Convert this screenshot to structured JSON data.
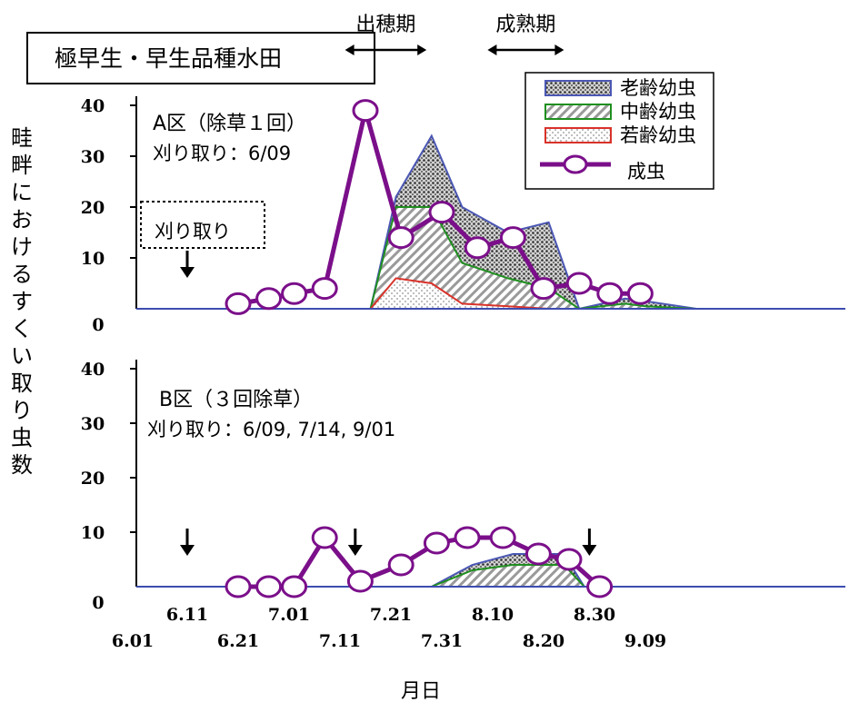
{
  "chart_data": {
    "type": "area",
    "title": "極早生・早生品種水田",
    "ylabel": "畦畔におけるすくい取り虫数",
    "xlabel": "月日",
    "ylim": [
      0,
      40
    ],
    "yticks": [
      "0",
      "10",
      "20",
      "30",
      "40"
    ],
    "stages": [
      {
        "label": "出穂期",
        "x": [
          41,
          57
        ]
      },
      {
        "label": "成熟期",
        "x": [
          69,
          84
        ]
      }
    ],
    "legend": [
      {
        "key": "old",
        "label": "老齢幼虫",
        "color": "#4b57b4",
        "fill": "dots"
      },
      {
        "key": "mid",
        "label": "中齢幼虫",
        "color": "#1f8f1f",
        "fill": "hatch"
      },
      {
        "key": "young",
        "label": "若齢幼虫",
        "color": "#d9322a",
        "fill": "dots-light"
      },
      {
        "key": "adult",
        "label": "成虫",
        "color": "#7b0f8a",
        "fill": "line-marker"
      }
    ],
    "xticks": [
      {
        "label": "6.01",
        "x": 0,
        "row": 2
      },
      {
        "label": "6.11",
        "x": 10,
        "row": 1
      },
      {
        "label": "6.21",
        "x": 20,
        "row": 2
      },
      {
        "label": "7.01",
        "x": 30,
        "row": 1
      },
      {
        "label": "7.11",
        "x": 40,
        "row": 2
      },
      {
        "label": "7.21",
        "x": 50,
        "row": 1
      },
      {
        "label": "7.31",
        "x": 60,
        "row": 2
      },
      {
        "label": "8.10",
        "x": 70,
        "row": 1
      },
      {
        "label": "8.20",
        "x": 80,
        "row": 2
      },
      {
        "label": "8.30",
        "x": 90,
        "row": 1
      },
      {
        "label": "9.09",
        "x": 100,
        "row": 2
      }
    ],
    "panels": [
      {
        "name": "A区",
        "label": "A区（除草１回）",
        "mow_label": "刈り取り：6/09",
        "mow_box": "刈り取り",
        "mow_x": [
          10
        ],
        "adult": {
          "x": [
            20,
            26,
            31,
            37,
            45,
            52,
            60,
            67,
            74,
            80,
            87,
            93,
            99
          ],
          "y": [
            1,
            2,
            3,
            4,
            39,
            14,
            19,
            12,
            14,
            4,
            5,
            3,
            3
          ]
        },
        "old": {
          "x": [
            46,
            51,
            58,
            64,
            73,
            81,
            87,
            96,
            100,
            110
          ],
          "y": [
            0,
            22,
            34,
            20,
            15,
            17,
            0,
            2,
            1.5,
            0
          ]
        },
        "mid": {
          "x": [
            46,
            51,
            58,
            64,
            73,
            81,
            87,
            96,
            100,
            110
          ],
          "y": [
            0,
            20,
            20,
            9,
            6,
            4,
            0,
            1,
            0.5,
            0
          ]
        },
        "young": {
          "x": [
            46,
            51,
            58,
            64,
            73,
            81,
            87,
            110
          ],
          "y": [
            0,
            6,
            5,
            1,
            0.5,
            0,
            0,
            0
          ]
        }
      },
      {
        "name": "B区",
        "label": "B区（３回除草）",
        "mow_label": "刈り取り：6/09, 7/14, 9/01",
        "mow_x": [
          10,
          43,
          89
        ],
        "adult": {
          "x": [
            20,
            26,
            31,
            37,
            44,
            52,
            59,
            65,
            72,
            79,
            85,
            91
          ],
          "y": [
            0,
            0,
            0,
            9,
            1,
            4,
            8,
            9,
            9,
            6,
            5,
            0
          ]
        },
        "old": {
          "x": [
            58,
            66,
            74,
            84,
            88,
            110
          ],
          "y": [
            0,
            4,
            6,
            6,
            0,
            0
          ]
        },
        "mid": {
          "x": [
            58,
            66,
            74,
            84,
            88,
            110
          ],
          "y": [
            0,
            3,
            4,
            4,
            0,
            0
          ]
        },
        "young": {
          "x": [
            58,
            110
          ],
          "y": [
            0,
            0
          ]
        }
      }
    ]
  }
}
